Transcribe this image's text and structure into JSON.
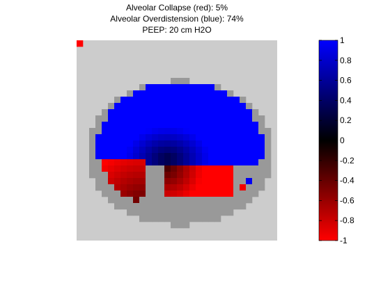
{
  "chart_data": {
    "type": "heatmap",
    "title_lines": [
      "Alveolar Collapse (red):  5%",
      "Alveolar Overdistension (blue): 74%",
      "PEEP: 20 cm H2O"
    ],
    "xlabel": "",
    "ylabel": "",
    "grid": false,
    "legend": "none",
    "colormap": {
      "range": [
        -1,
        1
      ],
      "stops": [
        {
          "value": -1,
          "color": "#ff0000"
        },
        {
          "value": 0,
          "color": "#000000"
        },
        {
          "value": 1,
          "color": "#0000ff"
        }
      ]
    },
    "colorbar": {
      "placement": "right",
      "ticks": [
        1,
        0.8,
        0.6,
        0.4,
        0.2,
        0,
        -0.2,
        -0.4,
        -0.6,
        -0.8,
        -1
      ],
      "tick_labels": [
        "1",
        "0.8",
        "0.6",
        "0.4",
        "0.2",
        "0",
        "-0.2",
        "-0.4",
        "-0.6",
        "-0.8",
        "-1"
      ]
    },
    "grid_size": [
      32,
      32
    ],
    "background_color": "#cccccc",
    "ring_color": "#999999",
    "regions": {
      "overdistension_percent": 74,
      "collapse_percent": 5,
      "peep_cmH2O": 20
    }
  }
}
